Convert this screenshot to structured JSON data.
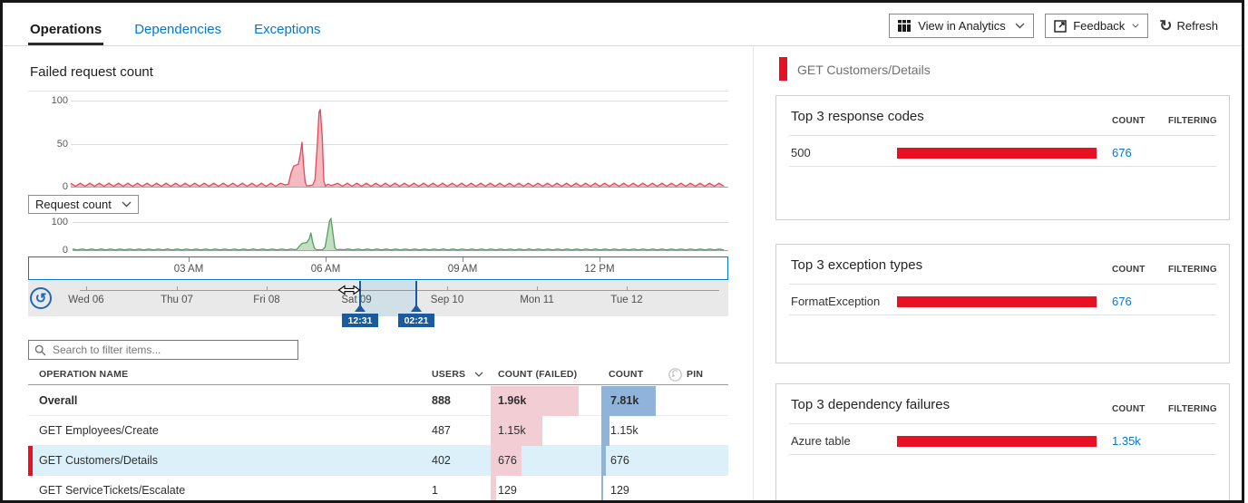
{
  "colors": {
    "accent": "#0078d4",
    "red": "#e81123",
    "handle_blue": "#1a5a9e",
    "chart1_stroke": "#df4a5c",
    "chart1_fill": "#f3adb5",
    "chart2_stroke": "#55a05c",
    "chart2_fill": "#b7d9b9",
    "bar_pink": "#f2ced4",
    "bar_blue": "#8fb3d9",
    "row_highlight": "#dcf0fa"
  },
  "tabs": [
    {
      "label": "Operations",
      "active": true
    },
    {
      "label": "Dependencies",
      "active": false
    },
    {
      "label": "Exceptions",
      "active": false
    }
  ],
  "toolbar": {
    "view_in_analytics": "View in Analytics",
    "feedback": "Feedback",
    "refresh": "Refresh"
  },
  "left": {
    "chart_title": "Failed request count",
    "metric_dropdown_value": "Request count",
    "search_placeholder": "Search to filter items..."
  },
  "chart_data": [
    {
      "type": "area",
      "title": "Failed request count",
      "series": "Failed request count over time",
      "ylim": [
        0,
        100
      ],
      "yticks": [
        "0",
        "50",
        "100"
      ],
      "x_ticks": [
        "03 AM",
        "06 AM",
        "09 AM",
        "12 PM"
      ],
      "grid": true,
      "baseline": {
        "min": 0.5,
        "max": 4,
        "period": 0.0145
      },
      "spike_region": [
        0.326,
        0.399
      ],
      "spikes": [
        [
          0.326,
          2
        ],
        [
          0.331,
          3
        ],
        [
          0.335,
          16
        ],
        [
          0.339,
          24
        ],
        [
          0.346,
          26
        ],
        [
          0.3495,
          40
        ],
        [
          0.3517,
          52
        ],
        [
          0.354,
          26
        ],
        [
          0.3565,
          5
        ],
        [
          0.359,
          1
        ],
        [
          0.364,
          1.5
        ],
        [
          0.368,
          2
        ],
        [
          0.3715,
          8
        ],
        [
          0.375,
          50
        ],
        [
          0.3775,
          86
        ],
        [
          0.3795,
          90
        ],
        [
          0.3825,
          58
        ],
        [
          0.385,
          6
        ],
        [
          0.3875,
          1
        ],
        [
          0.3915,
          3
        ],
        [
          0.3955,
          1.5
        ],
        [
          0.399,
          2
        ]
      ],
      "peak_values": [
        52,
        90
      ]
    },
    {
      "type": "area",
      "title": "Request count",
      "series": "Request count over time",
      "ylim": [
        0,
        100
      ],
      "yticks": [
        "0",
        "100"
      ],
      "x_ticks": [
        "03 AM",
        "06 AM",
        "09 AM",
        "12 PM"
      ],
      "grid": true,
      "baseline": {
        "min": 0.5,
        "max": 4,
        "period": 0.0145
      },
      "spike_region": [
        0.337,
        0.414
      ],
      "spikes": [
        [
          0.337,
          2
        ],
        [
          0.342,
          3
        ],
        [
          0.346,
          15
        ],
        [
          0.35,
          24
        ],
        [
          0.357,
          27
        ],
        [
          0.361,
          40
        ],
        [
          0.3635,
          62
        ],
        [
          0.366,
          30
        ],
        [
          0.369,
          6
        ],
        [
          0.372,
          1
        ],
        [
          0.377,
          1.5
        ],
        [
          0.3815,
          2
        ],
        [
          0.385,
          10
        ],
        [
          0.3885,
          55
        ],
        [
          0.392,
          105
        ],
        [
          0.394,
          112
        ],
        [
          0.397,
          62
        ],
        [
          0.4,
          8
        ],
        [
          0.403,
          1
        ],
        [
          0.407,
          3
        ],
        [
          0.411,
          1.5
        ],
        [
          0.414,
          2
        ]
      ],
      "peak_values": [
        62,
        112
      ]
    }
  ],
  "timeline": {
    "days": [
      "Wed 06",
      "Thu 07",
      "Fri 08",
      "Sat 09",
      "Sep 10",
      "Mon 11",
      "Tue 12"
    ],
    "handles": [
      "12:31",
      "02:21"
    ]
  },
  "table": {
    "headers": {
      "name": "OPERATION NAME",
      "users": "USERS",
      "failed": "COUNT (FAILED)",
      "count": "COUNT",
      "pin": "PIN"
    },
    "rows": [
      {
        "name": "Overall",
        "users": "888",
        "failed": "1.96k",
        "failed_value": 1960,
        "count": "7.81k",
        "count_value": 7810
      },
      {
        "name": "GET Employees/Create",
        "users": "487",
        "failed": "1.15k",
        "failed_value": 1150,
        "count": "1.15k",
        "count_value": 1150
      },
      {
        "name": "GET Customers/Details",
        "users": "402",
        "failed": "676",
        "failed_value": 676,
        "count": "676",
        "count_value": 676
      },
      {
        "name": "GET ServiceTickets/Escalate",
        "users": "1",
        "failed": "129",
        "failed_value": 129,
        "count": "129",
        "count_value": 129
      }
    ]
  },
  "right": {
    "selection_title": "GET Customers/Details",
    "cards": [
      {
        "title": "Top 3 response codes",
        "count_header": "COUNT",
        "filtering_header": "FILTERING",
        "rows": [
          {
            "label": "500",
            "count": "676"
          }
        ]
      },
      {
        "title": "Top 3 exception types",
        "count_header": "COUNT",
        "filtering_header": "FILTERING",
        "rows": [
          {
            "label": "FormatException",
            "count": "676"
          }
        ]
      },
      {
        "title": "Top 3 dependency failures",
        "count_header": "COUNT",
        "filtering_header": "FILTERING",
        "rows": [
          {
            "label": "Azure table",
            "count": "1.35k"
          }
        ]
      }
    ]
  }
}
